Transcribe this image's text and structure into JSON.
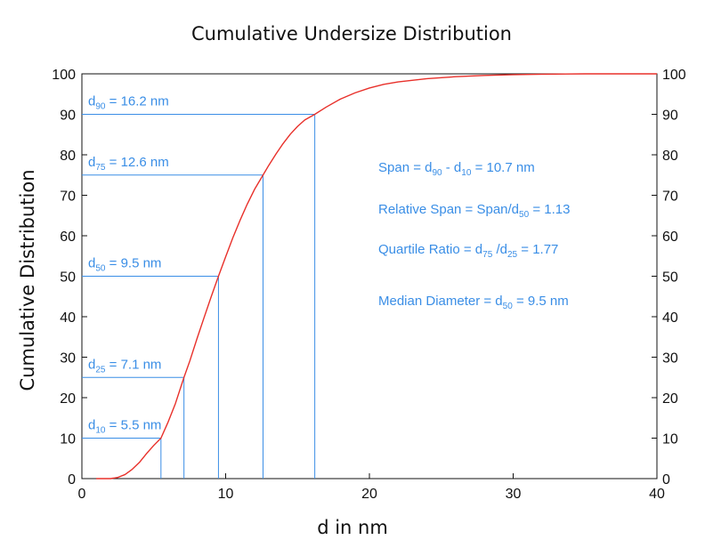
{
  "chart_data": {
    "type": "line",
    "title": "Cumulative Undersize Distribution",
    "xlabel": "d in nm",
    "ylabel": "Cumulative Distribution",
    "xlim": [
      0,
      40
    ],
    "ylim": [
      0,
      100
    ],
    "xticks": [
      0,
      10,
      20,
      30,
      40
    ],
    "yticks": [
      0,
      10,
      20,
      30,
      40,
      50,
      60,
      70,
      80,
      90,
      100
    ],
    "right_axis_ticks": true,
    "grid": false,
    "line_color": "#e8302a",
    "annotation_color": "#3a8ee6",
    "series": [
      {
        "x": [
          1,
          2,
          2.5,
          3,
          3.5,
          4,
          4.5,
          5,
          5.5,
          6,
          6.5,
          7.1,
          7.5,
          8,
          8.5,
          9,
          9.5,
          10,
          10.5,
          11,
          11.5,
          12,
          12.6,
          13,
          13.5,
          14,
          14.5,
          15,
          15.5,
          16.2,
          17,
          18,
          19,
          20,
          21,
          22,
          24,
          26,
          28,
          30,
          32,
          35,
          40
        ],
        "y": [
          0,
          0,
          0.3,
          1,
          2.3,
          4,
          6.2,
          8.2,
          10,
          14,
          18.5,
          25,
          29,
          34.5,
          39.8,
          45,
          50,
          54.8,
          59.5,
          63.8,
          67.8,
          71.4,
          75,
          77.4,
          80.2,
          82.8,
          85.1,
          87,
          88.6,
          90,
          91.8,
          93.8,
          95.3,
          96.5,
          97.4,
          98,
          98.8,
          99.3,
          99.6,
          99.8,
          99.9,
          100,
          100
        ]
      }
    ],
    "markers": [
      {
        "label": "d90",
        "x": 16.2,
        "y": 90
      },
      {
        "label": "d75",
        "x": 12.6,
        "y": 75
      },
      {
        "label": "d50",
        "x": 9.5,
        "y": 50
      },
      {
        "label": "d25",
        "x": 7.1,
        "y": 25
      },
      {
        "label": "d10",
        "x": 5.5,
        "y": 10
      }
    ],
    "marker_labels": [
      {
        "base": "d",
        "sub": "90",
        "rest": " = 16.2 nm"
      },
      {
        "base": "d",
        "sub": "75",
        "rest": " = 12.6 nm"
      },
      {
        "base": "d",
        "sub": "50",
        "rest": " = 9.5 nm"
      },
      {
        "base": "d",
        "sub": "25",
        "rest": " = 7.1 nm"
      },
      {
        "base": "d",
        "sub": "10",
        "rest": " = 5.5 nm"
      }
    ],
    "stats": [
      {
        "parts": [
          [
            "Span = d",
            ""
          ],
          [
            "90",
            "sub"
          ],
          [
            " - d",
            ""
          ],
          [
            "10",
            "sub"
          ],
          [
            " = 10.7 nm",
            ""
          ]
        ]
      },
      {
        "parts": [
          [
            "Relative Span = Span/d",
            ""
          ],
          [
            "50",
            "sub"
          ],
          [
            " = 1.13",
            ""
          ]
        ]
      },
      {
        "parts": [
          [
            "Quartile Ratio = d",
            ""
          ],
          [
            "75",
            "sub"
          ],
          [
            " /d",
            ""
          ],
          [
            "25",
            "sub"
          ],
          [
            " = 1.77",
            ""
          ]
        ]
      },
      {
        "parts": [
          [
            "Median Diameter = d",
            ""
          ],
          [
            "50",
            "sub"
          ],
          [
            " = 9.5 nm",
            ""
          ]
        ]
      }
    ]
  }
}
